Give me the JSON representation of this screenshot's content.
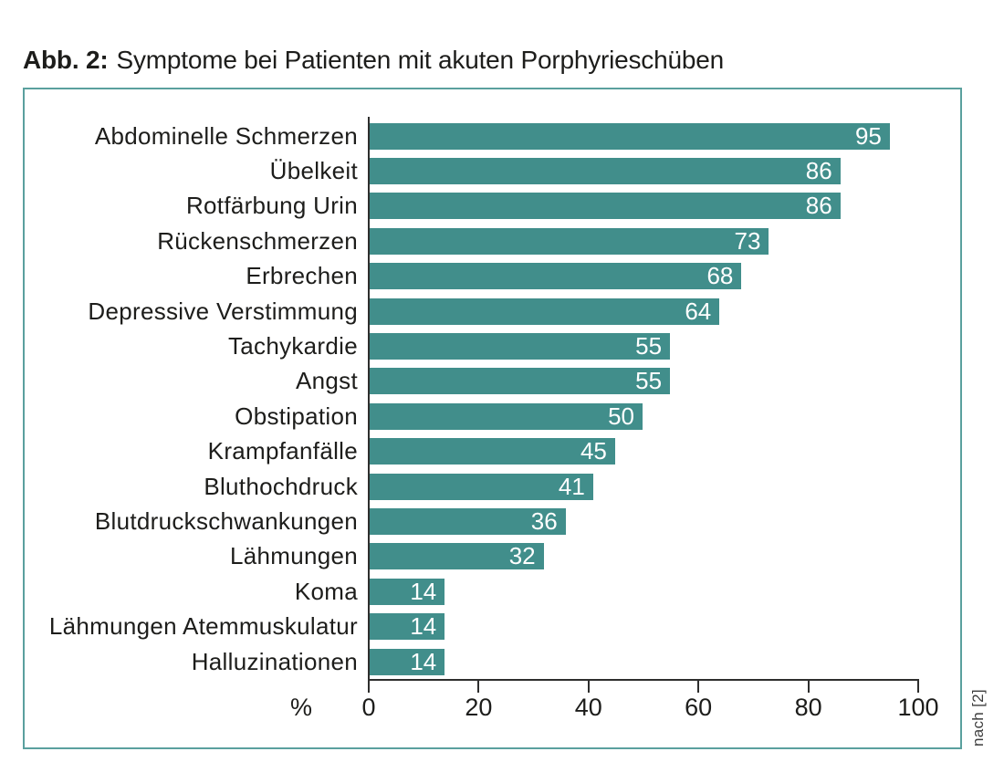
{
  "figure": {
    "label": "Abb. 2:",
    "title": "Symptome bei Patienten mit akuten Porphyrieschüben",
    "source_note": "nach [2]"
  },
  "chart_data": {
    "type": "bar",
    "orientation": "horizontal",
    "title": "Abb. 2: Symptome bei Patienten mit akuten Porphyrieschüben",
    "categories": [
      "Abdominelle Schmerzen",
      "Übelkeit",
      "Rotfärbung Urin",
      "Rückenschmerzen",
      "Erbrechen",
      "Depressive Verstimmung",
      "Tachykardie",
      "Angst",
      "Obstipation",
      "Krampfanfälle",
      "Bluthochdruck",
      "Blutdruckschwankungen",
      "Lähmungen",
      "Koma",
      "Lähmungen Atemmuskulatur",
      "Halluzinationen"
    ],
    "values": [
      95,
      86,
      86,
      73,
      68,
      64,
      55,
      55,
      50,
      45,
      41,
      36,
      32,
      14,
      14,
      14
    ],
    "xlabel": "%",
    "x_ticks": [
      0,
      20,
      40,
      60,
      80,
      100
    ],
    "xlim": [
      0,
      100
    ],
    "grid": false,
    "legend": null,
    "value_labels_shown": true,
    "colors": {
      "bar": "#418e8b",
      "frame": "#5aa09e",
      "axis": "#2e2e2d",
      "value_label": "#ffffff",
      "category_label": "#1d1d1b",
      "title_text": "#1d1d1b",
      "source_note": "#3d3d3d",
      "background": "#ffffff"
    }
  }
}
